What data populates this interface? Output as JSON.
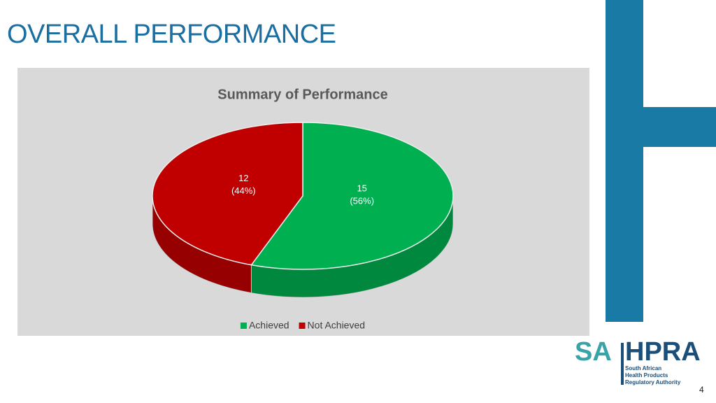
{
  "slide": {
    "title": "OVERALL PERFORMANCE",
    "page_number": "4",
    "logo": {
      "part1": "SA",
      "part2": "HPRA",
      "lines": [
        "South African",
        "Health Products",
        "Regulatory Authority"
      ]
    }
  },
  "chart_data": {
    "type": "pie",
    "title": "Summary of Performance",
    "categories": [
      "Achieved",
      "Not Achieved"
    ],
    "values": [
      15,
      12
    ],
    "percent_labels": [
      "(56%)",
      "(44%)"
    ],
    "colors": [
      "#00b050",
      "#c00000"
    ],
    "legend": "bottom"
  }
}
